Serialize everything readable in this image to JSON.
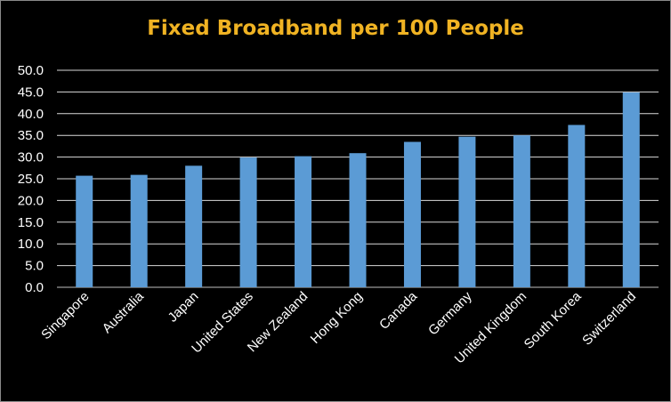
{
  "chart_data": {
    "type": "bar",
    "title": "Fixed Broadband per 100 People",
    "categories": [
      "Singapore",
      "Australia",
      "Japan",
      "United States",
      "New Zealand",
      "Hong Kong",
      "Canada",
      "Germany",
      "United Kingdom",
      "South Korea",
      "Switzerland"
    ],
    "values": [
      25.7,
      25.9,
      28.0,
      29.9,
      30.2,
      30.9,
      33.5,
      34.7,
      35.0,
      37.4,
      44.9
    ],
    "yticks": [
      "0.0",
      "5.0",
      "10.0",
      "15.0",
      "20.0",
      "25.0",
      "30.0",
      "35.0",
      "40.0",
      "45.0",
      "50.0"
    ],
    "ylim": [
      0,
      50
    ],
    "xlabel": "",
    "ylabel": "",
    "grid": true,
    "legend": "none",
    "colors": {
      "bar": "#5b9bd5",
      "title": "#f0b323",
      "grid": "#d9d9d9",
      "text": "#ffffff",
      "background": "#000000"
    }
  }
}
